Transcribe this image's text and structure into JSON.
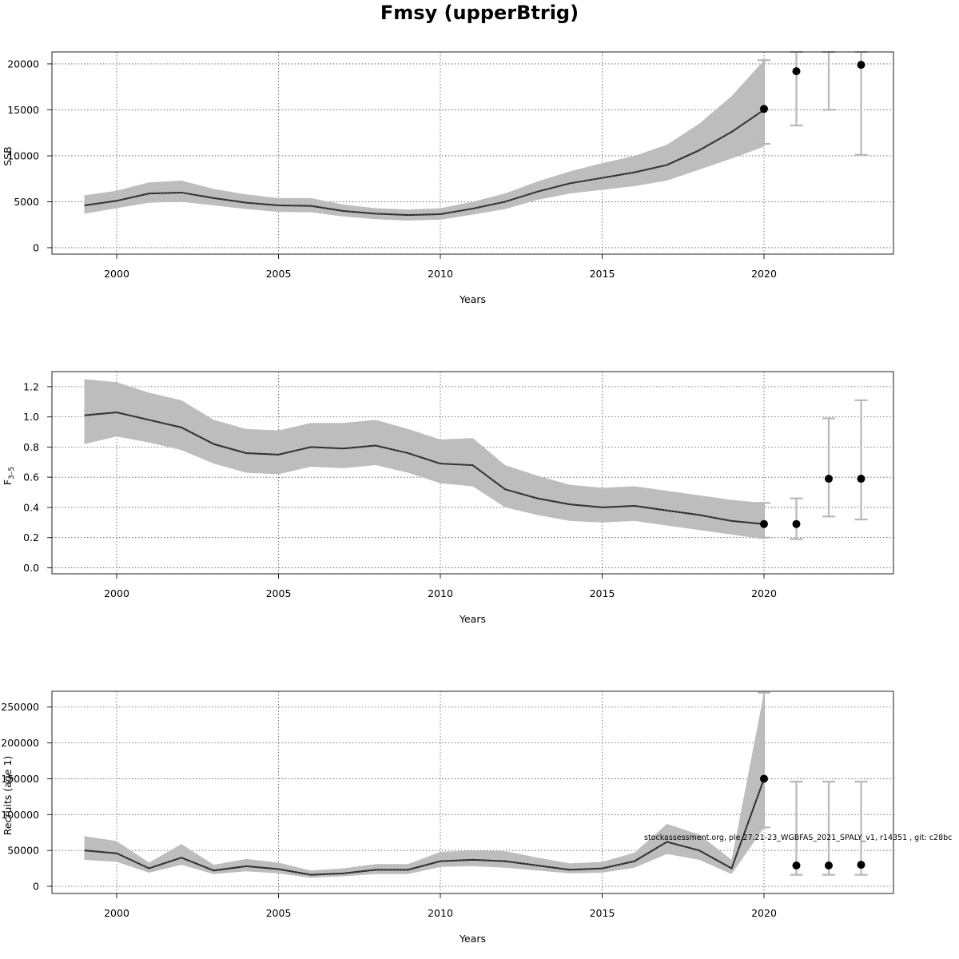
{
  "title": "Fmsy (upperBtrig)",
  "footnote": "stockassessment.org, ple.27.21-23_WGBFAS_2021_SPALY_v1, r14351 , git: c28bc",
  "colors": {
    "band": "#bdbdbd",
    "line": "#222222",
    "errorbar": "#b8b8b8",
    "point": "#000000"
  },
  "chart_data": [
    {
      "type": "line",
      "ylabel": "SSB",
      "xlabel": "Years",
      "xlim": [
        1998,
        2024
      ],
      "ylim": [
        -700,
        21300
      ],
      "x_ticks": [
        2000,
        2005,
        2010,
        2015,
        2020
      ],
      "y_ticks": [
        0,
        5000,
        10000,
        15000,
        20000
      ],
      "y_tick_labels": [
        "0",
        "5000",
        "10000",
        "15000",
        "20000"
      ],
      "grid": true,
      "series": [
        {
          "x": [
            1999,
            2000,
            2001,
            2002,
            2003,
            2004,
            2005,
            2006,
            2007,
            2008,
            2009,
            2010,
            2011,
            2012,
            2013,
            2014,
            2015,
            2016,
            2017,
            2018,
            2019,
            2020
          ],
          "values": [
            4600,
            5100,
            5900,
            6000,
            5400,
            4900,
            4600,
            4550,
            4000,
            3700,
            3550,
            3650,
            4250,
            5000,
            6100,
            7000,
            7600,
            8200,
            9000,
            10600,
            12600,
            15000
          ],
          "lower": [
            3700,
            4300,
            4900,
            5000,
            4600,
            4200,
            3900,
            3850,
            3400,
            3100,
            2950,
            3050,
            3600,
            4200,
            5200,
            5900,
            6300,
            6700,
            7300,
            8500,
            9700,
            11000
          ],
          "upper": [
            5700,
            6200,
            7100,
            7300,
            6400,
            5800,
            5400,
            5400,
            4700,
            4300,
            4150,
            4300,
            5000,
            5900,
            7200,
            8300,
            9200,
            10000,
            11200,
            13500,
            16500,
            20400
          ]
        }
      ],
      "forecast": {
        "x": [
          2020,
          2021,
          2022,
          2023
        ],
        "values": [
          15100,
          19200,
          null,
          19900
        ],
        "lower": [
          11300,
          13300,
          15000,
          10100
        ],
        "upper": [
          20400,
          21300,
          21300,
          21300
        ]
      }
    },
    {
      "type": "line",
      "ylabel": "F3-5",
      "xlabel": "Years",
      "xlim": [
        1998,
        2024
      ],
      "ylim": [
        -0.04,
        1.3
      ],
      "x_ticks": [
        2000,
        2005,
        2010,
        2015,
        2020
      ],
      "y_ticks": [
        0.0,
        0.2,
        0.4,
        0.6,
        0.8,
        1.0,
        1.2
      ],
      "y_tick_labels": [
        "0.0",
        "0.2",
        "0.4",
        "0.6",
        "0.8",
        "1.0",
        "1.2"
      ],
      "grid": true,
      "series": [
        {
          "x": [
            1999,
            2000,
            2001,
            2002,
            2003,
            2004,
            2005,
            2006,
            2007,
            2008,
            2009,
            2010,
            2011,
            2012,
            2013,
            2014,
            2015,
            2016,
            2017,
            2018,
            2019,
            2020
          ],
          "values": [
            1.01,
            1.03,
            0.98,
            0.93,
            0.82,
            0.76,
            0.75,
            0.8,
            0.79,
            0.81,
            0.76,
            0.69,
            0.68,
            0.52,
            0.46,
            0.42,
            0.4,
            0.41,
            0.38,
            0.35,
            0.31,
            0.29
          ],
          "lower": [
            0.82,
            0.87,
            0.83,
            0.78,
            0.69,
            0.63,
            0.62,
            0.67,
            0.66,
            0.68,
            0.63,
            0.56,
            0.54,
            0.4,
            0.35,
            0.31,
            0.3,
            0.31,
            0.28,
            0.25,
            0.22,
            0.19
          ],
          "upper": [
            1.25,
            1.23,
            1.16,
            1.11,
            0.98,
            0.92,
            0.91,
            0.96,
            0.96,
            0.98,
            0.92,
            0.85,
            0.86,
            0.68,
            0.61,
            0.55,
            0.53,
            0.54,
            0.51,
            0.48,
            0.45,
            0.43
          ]
        }
      ],
      "forecast": {
        "x": [
          2020,
          2021,
          2022,
          2023
        ],
        "values": [
          0.29,
          0.29,
          0.59,
          0.59
        ],
        "lower": [
          0.2,
          0.19,
          0.34,
          0.32
        ],
        "upper": [
          0.43,
          0.46,
          0.99,
          1.11
        ]
      }
    },
    {
      "type": "line",
      "ylabel": "Recruits (age 1)",
      "xlabel": "Years",
      "xlim": [
        1998,
        2024
      ],
      "ylim": [
        -10000,
        272000
      ],
      "x_ticks": [
        2000,
        2005,
        2010,
        2015,
        2020
      ],
      "y_ticks": [
        0,
        50000,
        100000,
        150000,
        200000,
        250000
      ],
      "y_tick_labels": [
        "0",
        "50000",
        "100000",
        "150000",
        "200000",
        "250000"
      ],
      "grid": true,
      "series": [
        {
          "x": [
            1999,
            2000,
            2001,
            2002,
            2003,
            2004,
            2005,
            2006,
            2007,
            2008,
            2009,
            2010,
            2011,
            2012,
            2013,
            2014,
            2015,
            2016,
            2017,
            2018,
            2019,
            2020
          ],
          "values": [
            50000,
            46000,
            25000,
            40000,
            22000,
            28000,
            24000,
            16000,
            18000,
            23000,
            23000,
            35000,
            37000,
            35000,
            29000,
            23000,
            25000,
            35000,
            62000,
            50000,
            25000,
            150000
          ],
          "lower": [
            37000,
            34000,
            19000,
            30000,
            17000,
            21000,
            18000,
            12000,
            14000,
            17000,
            17000,
            27000,
            28000,
            26000,
            22000,
            18000,
            19000,
            26000,
            45000,
            37000,
            17000,
            82000
          ],
          "upper": [
            70000,
            63000,
            33000,
            59000,
            30000,
            38000,
            33000,
            22000,
            25000,
            31000,
            31000,
            48000,
            50000,
            49000,
            40000,
            32000,
            34000,
            47000,
            87000,
            72000,
            37000,
            270000
          ]
        }
      ],
      "forecast": {
        "x": [
          2020,
          2021,
          2022,
          2023
        ],
        "values": [
          150000,
          29000,
          29000,
          30000
        ],
        "lower": [
          82000,
          16000,
          16000,
          16000
        ],
        "upper": [
          270000,
          146000,
          146000,
          146000
        ]
      }
    }
  ]
}
